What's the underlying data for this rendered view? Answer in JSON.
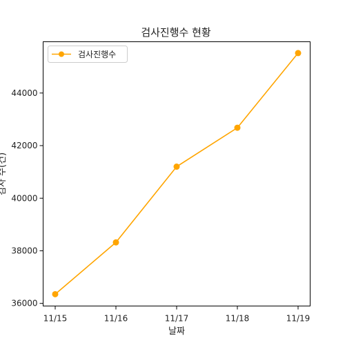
{
  "chart_data": {
    "type": "line",
    "title": "검사진행수 현황",
    "xlabel": "날짜",
    "ylabel": "검사 수(건)",
    "categories": [
      "11/15",
      "11/16",
      "11/17",
      "11/18",
      "11/19"
    ],
    "series": [
      {
        "name": "검사진행수",
        "values": [
          36350,
          38320,
          41200,
          42680,
          45520
        ],
        "color": "#FFA500",
        "marker": "circle"
      }
    ],
    "ylim": [
      35900,
      45950
    ],
    "yticks": [
      36000,
      38000,
      40000,
      42000,
      44000
    ],
    "grid": false,
    "legend": "top-left"
  }
}
